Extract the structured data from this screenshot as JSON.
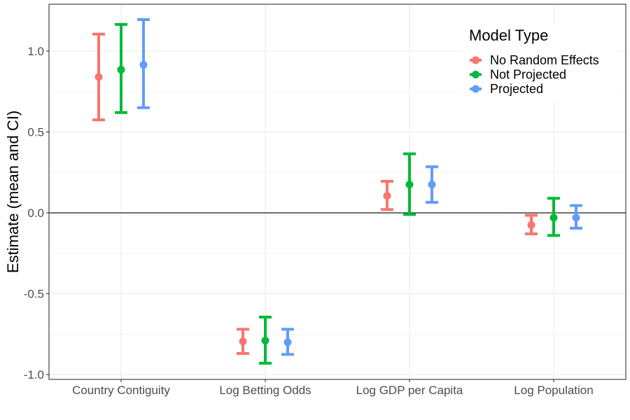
{
  "chart_data": {
    "type": "errorbar",
    "ylabel": "Estimate (mean and CI)",
    "xlabel": "",
    "categories": [
      "Country Contiguity",
      "Log Betting Odds",
      "Log GDP per Capita",
      "Log Population"
    ],
    "ylim": [
      -1.03,
      1.29
    ],
    "yticks": [
      -1.0,
      -0.5,
      0.0,
      0.5,
      1.0
    ],
    "ytick_labels": [
      "-1.0",
      "-0.5",
      "0.0",
      "0.5",
      "1.0"
    ],
    "reference_line": 0,
    "grid": true,
    "legend": {
      "title": "Model Type",
      "position": "top-right"
    },
    "series": [
      {
        "name": "No Random Effects",
        "color": "#F8766D",
        "mean": [
          0.84,
          -0.795,
          0.105,
          -0.075
        ],
        "lower": [
          0.575,
          -0.87,
          0.02,
          -0.13
        ],
        "upper": [
          1.105,
          -0.72,
          0.195,
          -0.015
        ]
      },
      {
        "name": "Not Projected",
        "color": "#00BA38",
        "mean": [
          0.885,
          -0.79,
          0.175,
          -0.03
        ],
        "lower": [
          0.62,
          -0.93,
          -0.01,
          -0.14
        ],
        "upper": [
          1.165,
          -0.645,
          0.365,
          0.09
        ]
      },
      {
        "name": "Projected",
        "color": "#619CFF",
        "mean": [
          0.915,
          -0.8,
          0.175,
          -0.03
        ],
        "lower": [
          0.65,
          -0.875,
          0.065,
          -0.095
        ],
        "upper": [
          1.195,
          -0.72,
          0.285,
          0.045
        ]
      }
    ]
  }
}
